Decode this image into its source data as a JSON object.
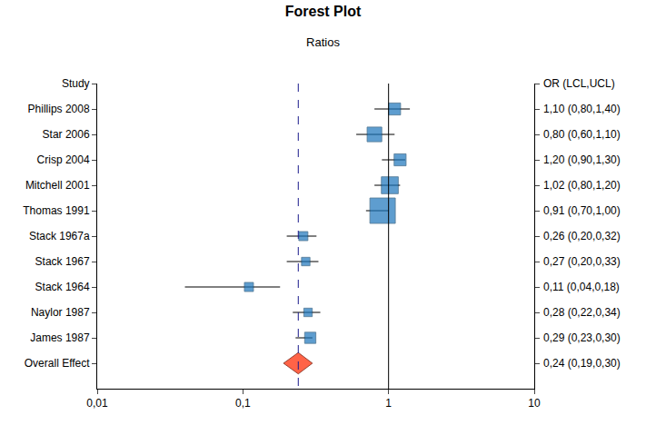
{
  "chart_data": {
    "type": "forest",
    "title": "Forest Plot",
    "subtitle": "Ratios",
    "row_header": "Study",
    "value_header": "OR (LCL,UCL)",
    "log": "x",
    "grid": false,
    "marker": "square",
    "color": "#1b75bb",
    "categories": [
      "Phillips 2008",
      "Star 2006",
      "Crisp 2004",
      "Mitchell 2001",
      "Thomas 1991",
      "Stack 1967a",
      "Stack 1967",
      "Stack 1964",
      "Naylor 1987",
      "James 1987"
    ],
    "values": [
      1.1,
      0.8,
      1.2,
      1.02,
      0.91,
      0.26,
      0.27,
      0.11,
      0.28,
      0.29
    ],
    "lcl": [
      0.8,
      0.6,
      0.9,
      0.8,
      0.7,
      0.2,
      0.2,
      0.04,
      0.22,
      0.23
    ],
    "ucl": [
      1.4,
      1.1,
      1.3,
      1.2,
      1.0,
      0.32,
      0.33,
      0.18,
      0.34,
      0.3
    ],
    "value_labels": [
      "1,10 (0,80,1,40)",
      "0,80 (0,60,1,10)",
      "1,20 (0,90,1,30)",
      "1,02 (0,80,1,20)",
      "0,91 (0,70,1,00)",
      "0,26 (0,20,0,32)",
      "0,27 (0,20,0,33)",
      "0,11 (0,04,0,18)",
      "0,28 (0,22,0,34)",
      "0,29 (0,23,0,30)"
    ],
    "weights": [
      4,
      6,
      4,
      8,
      18,
      2.3,
      2,
      2.3,
      2,
      3.5
    ],
    "overall": {
      "name": "Overall Effect",
      "value": 0.24,
      "lcl": 0.19,
      "ucl": 0.3,
      "label": "0,24 (0,19,0,30)",
      "color": "#ff6347",
      "marker": "diamond"
    },
    "reference_line": 1,
    "xlim": [
      0.01,
      10
    ],
    "xticks": [
      {
        "value": 0.01,
        "label": "0,01"
      },
      {
        "value": 0.1,
        "label": "0,1"
      },
      1,
      10
    ]
  }
}
